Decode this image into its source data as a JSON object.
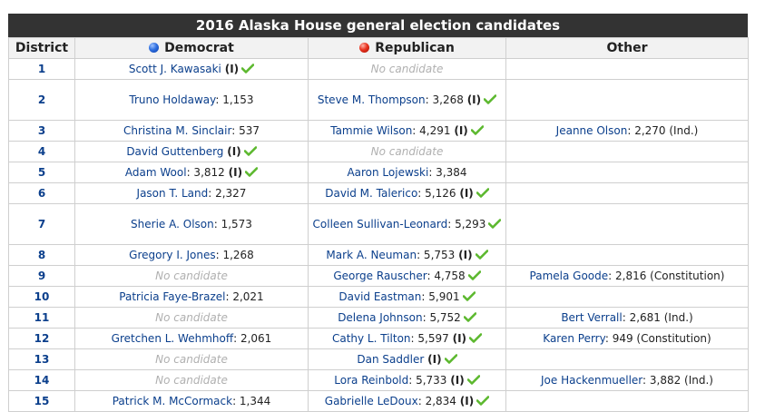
{
  "title": "2016 Alaska House general election candidates",
  "headers": {
    "district": "District",
    "democrat": "Democrat",
    "republican": "Republican",
    "other": "Other"
  },
  "colors": {
    "democrat_dot": "#2f6fe0",
    "republican_dot": "#e8321f",
    "check": "#5cb82e",
    "link": "#0b3f8c"
  },
  "icons": {
    "party_marker": "circle-dot-icon",
    "winner": "check-icon"
  },
  "rows": [
    {
      "district": "1",
      "tall": false,
      "dem": {
        "name": "Scott J. Kawasaki",
        "votes": "",
        "inc": "(I)",
        "win": true
      },
      "rep": {
        "none": "No candidate"
      },
      "oth": null
    },
    {
      "district": "2",
      "tall": true,
      "dem": {
        "name": "Truno Holdaway",
        "votes": ": 1,153",
        "inc": "",
        "win": false
      },
      "rep": {
        "name": "Steve M. Thompson",
        "votes": ": 3,268",
        "inc": "(I)",
        "win": true
      },
      "oth": null
    },
    {
      "district": "3",
      "tall": false,
      "dem": {
        "name": "Christina M. Sinclair",
        "votes": ": 537",
        "inc": "",
        "win": false
      },
      "rep": {
        "name": "Tammie Wilson",
        "votes": ": 4,291",
        "inc": "(I)",
        "win": true
      },
      "oth": {
        "name": "Jeanne Olson",
        "votes": ": 2,270 (Ind.)",
        "inc": "",
        "win": false
      }
    },
    {
      "district": "4",
      "tall": false,
      "dem": {
        "name": "David Guttenberg",
        "votes": "",
        "inc": "(I)",
        "win": true
      },
      "rep": {
        "none": "No candidate"
      },
      "oth": null
    },
    {
      "district": "5",
      "tall": false,
      "dem": {
        "name": "Adam Wool",
        "votes": ": 3,812",
        "inc": "(I)",
        "win": true
      },
      "rep": {
        "name": "Aaron Lojewski",
        "votes": ": 3,384",
        "inc": "",
        "win": false
      },
      "oth": null
    },
    {
      "district": "6",
      "tall": false,
      "dem": {
        "name": "Jason T. Land",
        "votes": ": 2,327",
        "inc": "",
        "win": false
      },
      "rep": {
        "name": "David M. Talerico",
        "votes": ": 5,126",
        "inc": "(I)",
        "win": true
      },
      "oth": null
    },
    {
      "district": "7",
      "tall": true,
      "dem": {
        "name": "Sherie A. Olson",
        "votes": ": 1,573",
        "inc": "",
        "win": false
      },
      "rep": {
        "name": "Colleen Sullivan-Leonard",
        "votes": ": 5,293",
        "inc": "",
        "win": true
      },
      "oth": null
    },
    {
      "district": "8",
      "tall": false,
      "dem": {
        "name": "Gregory I. Jones",
        "votes": ": 1,268",
        "inc": "",
        "win": false
      },
      "rep": {
        "name": "Mark A. Neuman",
        "votes": ": 5,753",
        "inc": "(I)",
        "win": true
      },
      "oth": null
    },
    {
      "district": "9",
      "tall": false,
      "dem": {
        "none": "No candidate"
      },
      "rep": {
        "name": "George Rauscher",
        "votes": ": 4,758",
        "inc": "",
        "win": true
      },
      "oth": {
        "name": "Pamela Goode",
        "votes": ": 2,816 (Constitution)",
        "inc": "",
        "win": false
      }
    },
    {
      "district": "10",
      "tall": false,
      "dem": {
        "name": "Patricia Faye-Brazel",
        "votes": ": 2,021",
        "inc": "",
        "win": false
      },
      "rep": {
        "name": "David Eastman",
        "votes": ": 5,901",
        "inc": "",
        "win": true
      },
      "oth": null
    },
    {
      "district": "11",
      "tall": false,
      "dem": {
        "none": "No candidate"
      },
      "rep": {
        "name": "Delena Johnson",
        "votes": ": 5,752",
        "inc": "",
        "win": true
      },
      "oth": {
        "name": "Bert Verrall",
        "votes": ": 2,681 (Ind.)",
        "inc": "",
        "win": false
      }
    },
    {
      "district": "12",
      "tall": false,
      "dem": {
        "name": "Gretchen L. Wehmhoff",
        "votes": ": 2,061",
        "inc": "",
        "win": false
      },
      "rep": {
        "name": "Cathy L. Tilton",
        "votes": ": 5,597",
        "inc": "(I)",
        "win": true
      },
      "oth": {
        "name": "Karen Perry",
        "votes": ": 949 (Constitution)",
        "inc": "",
        "win": false
      }
    },
    {
      "district": "13",
      "tall": false,
      "dem": {
        "none": "No candidate"
      },
      "rep": {
        "name": "Dan Saddler",
        "votes": "",
        "inc": "(I)",
        "win": true
      },
      "oth": null
    },
    {
      "district": "14",
      "tall": false,
      "dem": {
        "none": "No candidate"
      },
      "rep": {
        "name": "Lora Reinbold",
        "votes": ": 5,733",
        "inc": "(I)",
        "win": true
      },
      "oth": {
        "name": "Joe Hackenmueller",
        "votes": ": 3,882 (Ind.)",
        "inc": "",
        "win": false
      }
    },
    {
      "district": "15",
      "tall": false,
      "dem": {
        "name": "Patrick M. McCormack",
        "votes": ": 1,344",
        "inc": "",
        "win": false
      },
      "rep": {
        "name": "Gabrielle LeDoux",
        "votes": ": 2,834",
        "inc": "(I)",
        "win": true
      },
      "oth": null
    }
  ]
}
